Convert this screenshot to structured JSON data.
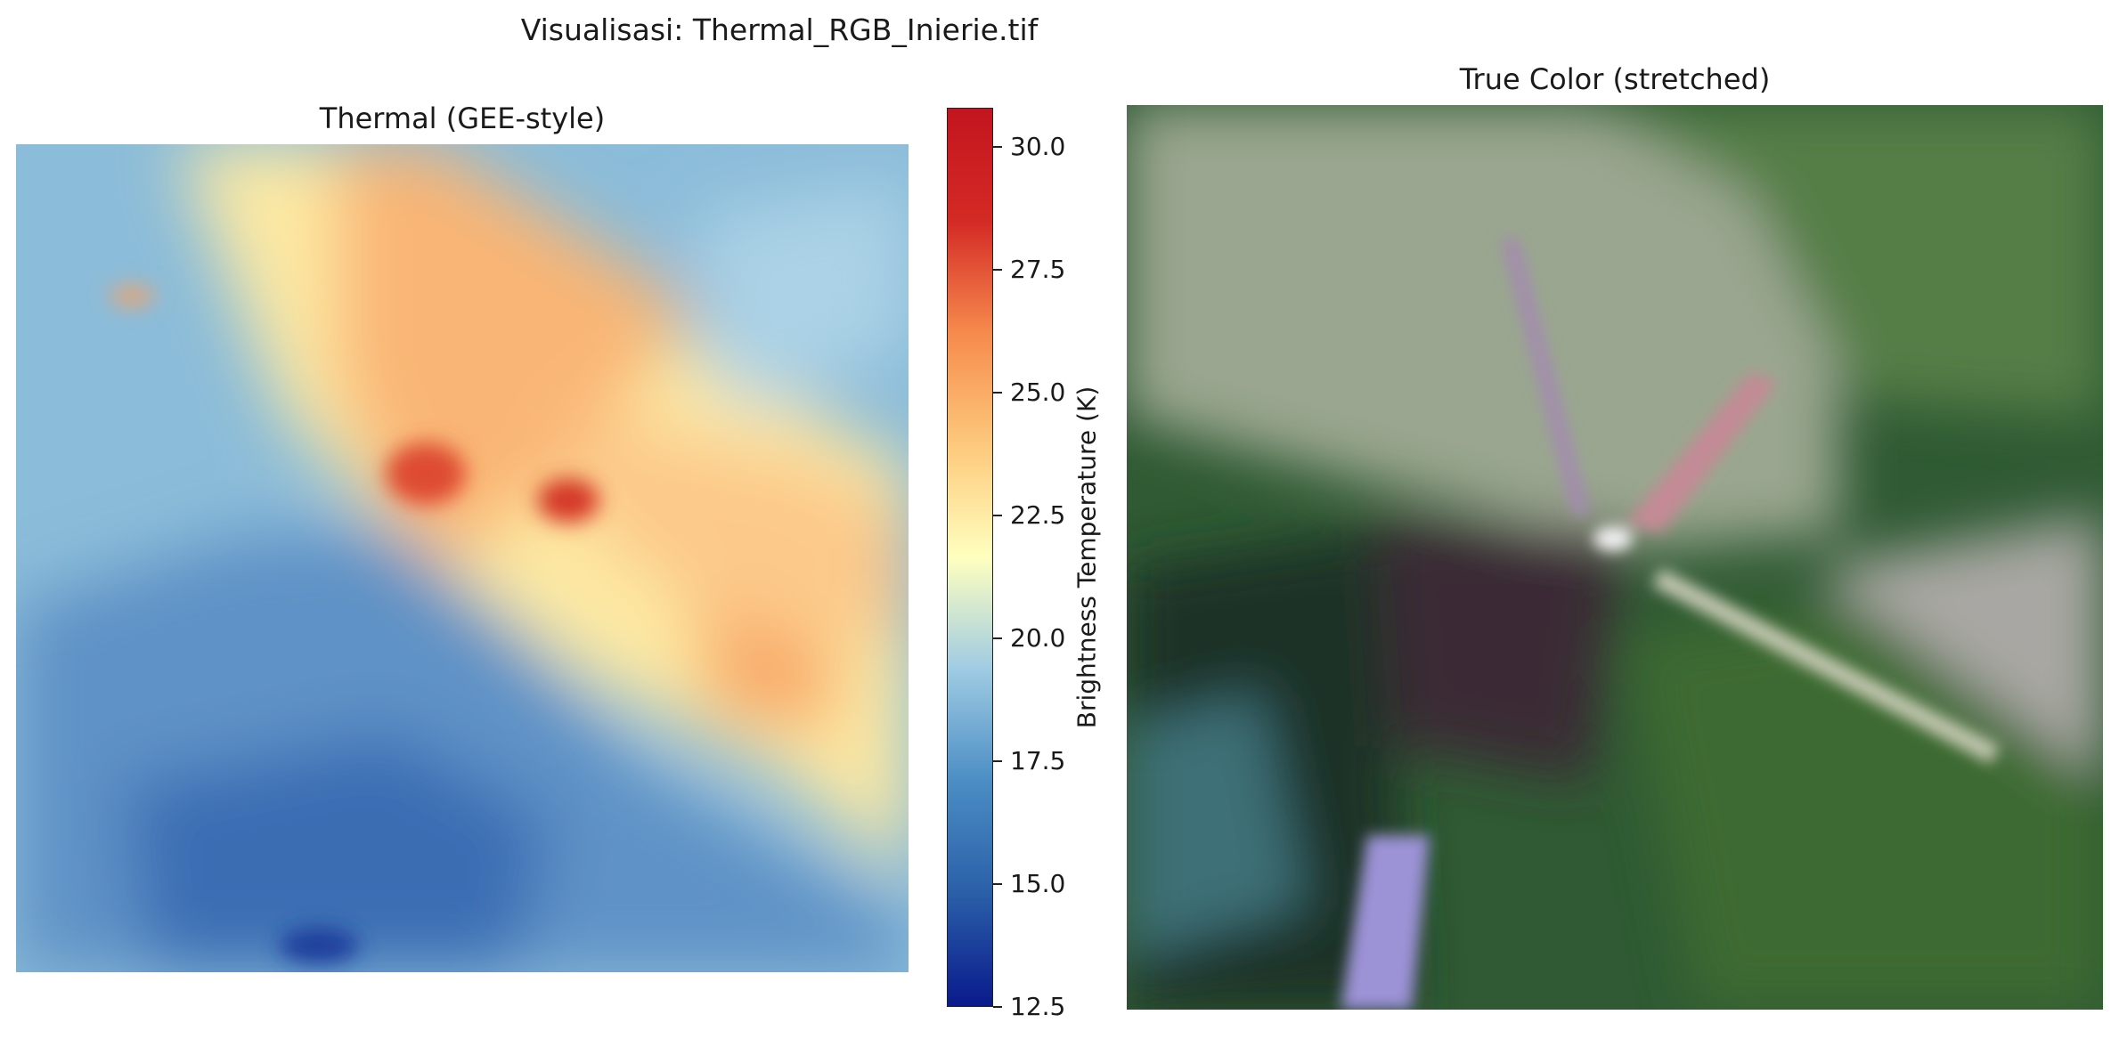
{
  "figure": {
    "suptitle": "Visualisasi: Thermal_RGB_Inierie.tif"
  },
  "thermal": {
    "title": "Thermal (GEE-style)",
    "colormap": "RdYlBu_r",
    "colorbar": {
      "label": "Brightness Temperature (K)",
      "vmin": 12.5,
      "vmax": 30.8,
      "ticks": [
        "12.5",
        "15.0",
        "17.5",
        "20.0",
        "22.5",
        "25.0",
        "27.5",
        "30.0"
      ],
      "colors": [
        "#0a1a8c",
        "#2a5fa8",
        "#4b8dc4",
        "#9fcbe3",
        "#ffffbf",
        "#fdc97c",
        "#f68a4d",
        "#d42a25",
        "#c2151f"
      ]
    }
  },
  "rgb": {
    "title": "True Color (stretched)"
  }
}
